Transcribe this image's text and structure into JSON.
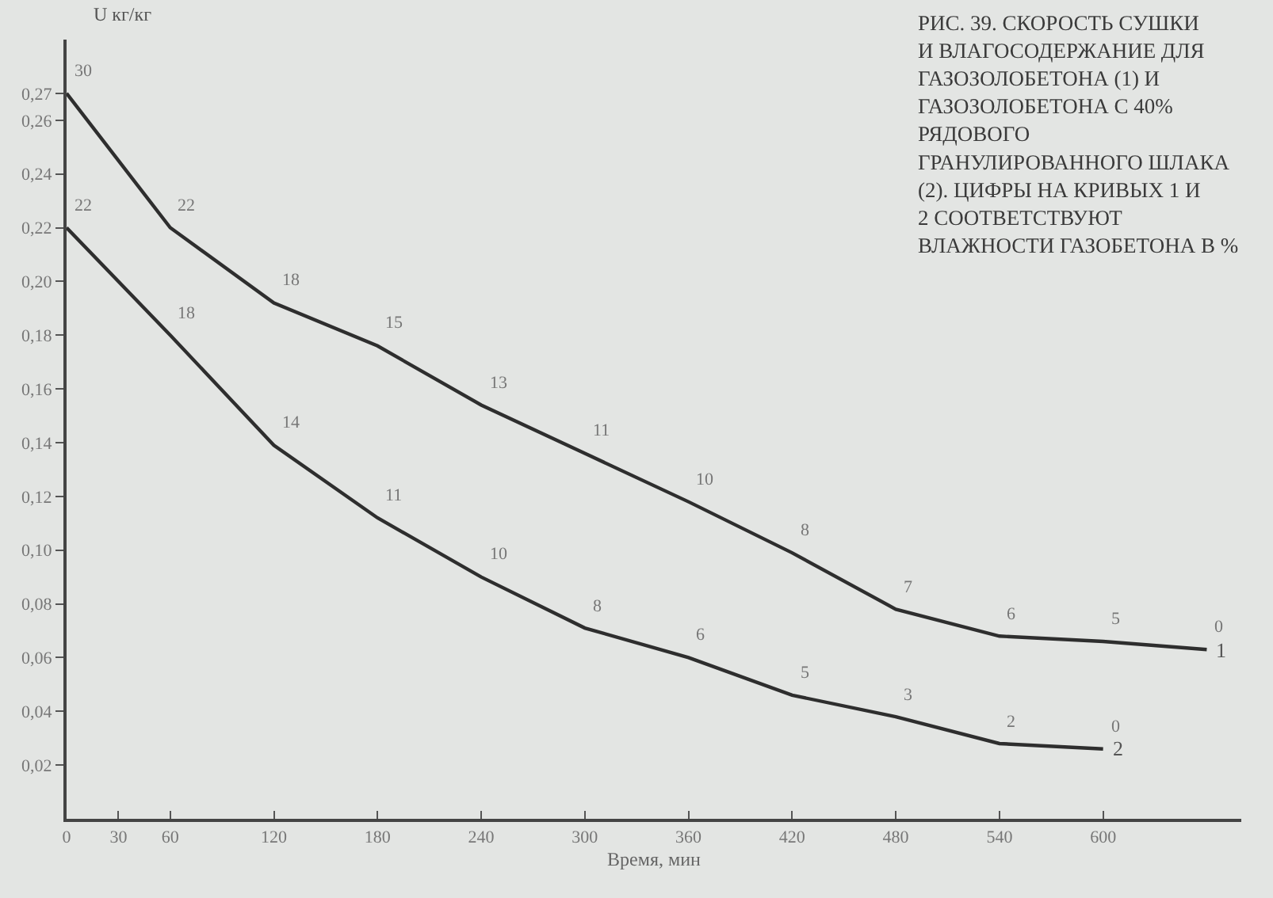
{
  "chart_data": {
    "type": "line",
    "title": "РИС. 39. СКОРОСТЬ СУШКИ И ВЛАГОСОДЕРЖАНИЕ ДЛЯ ГАЗОЗОЛОБЕТОНА (1) И ГАЗОЗОЛОБЕТОНА С 40% РЯДОВОГО ГРАНУЛИРОВАННОГО ШЛАКА (2). ЦИФРЫ НА КРИВЫХ 1 И 2 СООТВЕТСТВУЮТ ВЛАЖНОСТИ ГАЗОБЕТОНА В %",
    "xlabel": "Время, мин",
    "ylabel": "U кг/кг",
    "x": [
      0,
      60,
      120,
      180,
      240,
      300,
      360,
      420,
      480,
      540,
      600,
      660
    ],
    "series": [
      {
        "name": "1",
        "color": "#2e2e2e",
        "values": [
          0.27,
          0.22,
          0.192,
          0.176,
          0.154,
          0.136,
          0.118,
          0.099,
          0.078,
          0.068,
          0.066,
          0.063
        ]
      },
      {
        "name": "2",
        "color": "#2e2e2e",
        "values": [
          0.22,
          0.18,
          0.139,
          0.112,
          0.09,
          0.071,
          0.06,
          0.046,
          0.038,
          0.028,
          0.026,
          null
        ]
      }
    ],
    "annotations": [
      {
        "text": "30",
        "x": 0,
        "y": 0.27
      },
      {
        "text": "22",
        "x": 60,
        "y": 0.22
      },
      {
        "text": "18",
        "x": 120,
        "y": 0.192
      },
      {
        "text": "15",
        "x": 180,
        "y": 0.176
      },
      {
        "text": "13",
        "x": 240,
        "y": 0.154
      },
      {
        "text": "11",
        "x": 300,
        "y": 0.136
      },
      {
        "text": "10",
        "x": 360,
        "y": 0.118
      },
      {
        "text": "8",
        "x": 420,
        "y": 0.099
      },
      {
        "text": "7",
        "x": 480,
        "y": 0.078
      },
      {
        "text": "6",
        "x": 540,
        "y": 0.068
      },
      {
        "text": "5",
        "x": 600,
        "y": 0.066
      },
      {
        "text": "0",
        "x": 660,
        "y": 0.063
      },
      {
        "text": "22",
        "x": 0,
        "y": 0.22
      },
      {
        "text": "18",
        "x": 60,
        "y": 0.18
      },
      {
        "text": "14",
        "x": 120,
        "y": 0.139
      },
      {
        "text": "11",
        "x": 180,
        "y": 0.112
      },
      {
        "text": "10",
        "x": 240,
        "y": 0.09
      },
      {
        "text": "8",
        "x": 300,
        "y": 0.071
      },
      {
        "text": "6",
        "x": 360,
        "y": 0.06
      },
      {
        "text": "5",
        "x": 420,
        "y": 0.046
      },
      {
        "text": "3",
        "x": 480,
        "y": 0.038
      },
      {
        "text": "2",
        "x": 540,
        "y": 0.028
      },
      {
        "text": "0",
        "x": 600,
        "y": 0.026
      }
    ],
    "xlim": [
      0,
      680
    ],
    "xticks": [
      0,
      30,
      60,
      120,
      180,
      240,
      300,
      360,
      420,
      480,
      540,
      600
    ],
    "ylim": [
      0,
      0.29
    ],
    "yticks": [
      {
        "value": 0.02,
        "label": "0,02"
      },
      {
        "value": 0.04,
        "label": "0,04"
      },
      {
        "value": 0.06,
        "label": "0,06"
      },
      {
        "value": 0.08,
        "label": "0,08"
      },
      {
        "value": 0.1,
        "label": "0,10"
      },
      {
        "value": 0.12,
        "label": "0,12"
      },
      {
        "value": 0.14,
        "label": "0,14"
      },
      {
        "value": 0.16,
        "label": "0,16"
      },
      {
        "value": 0.18,
        "label": "0,18"
      },
      {
        "value": 0.2,
        "label": "0,20"
      },
      {
        "value": 0.22,
        "label": "0,22"
      },
      {
        "value": 0.24,
        "label": "0,24"
      },
      {
        "value": 0.26,
        "label": "0,26"
      },
      {
        "value": 0.27,
        "label": "0,27"
      }
    ],
    "grid": false,
    "legend": false,
    "line_style": "solid",
    "marker": "none"
  }
}
